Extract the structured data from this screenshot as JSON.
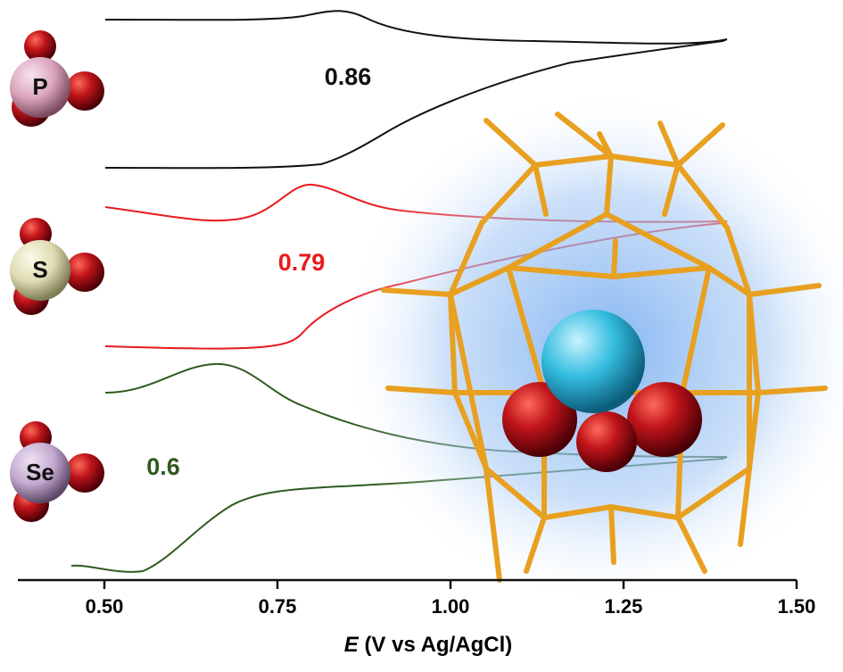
{
  "chart_data": {
    "type": "cv",
    "xlim": [
      0.375,
      1.5
    ],
    "xticks": [
      {
        "value": 0.5,
        "label": "0.50"
      },
      {
        "value": 0.75,
        "label": "0.75"
      },
      {
        "value": 1.0,
        "label": "1.00"
      },
      {
        "value": 1.25,
        "label": "1.25"
      },
      {
        "value": 1.5,
        "label": "1.50"
      }
    ],
    "x_label_symbol": "E",
    "x_label_unit": "(V vs Ag/AgCl)",
    "annotations": [
      {
        "atom": "P",
        "potential": 0.86,
        "color": "#111111"
      },
      {
        "atom": "S",
        "potential": 0.79,
        "color": "#e8191c"
      },
      {
        "atom": "Se",
        "potential": 0.6,
        "color": "#2f5a1e"
      }
    ]
  }
}
